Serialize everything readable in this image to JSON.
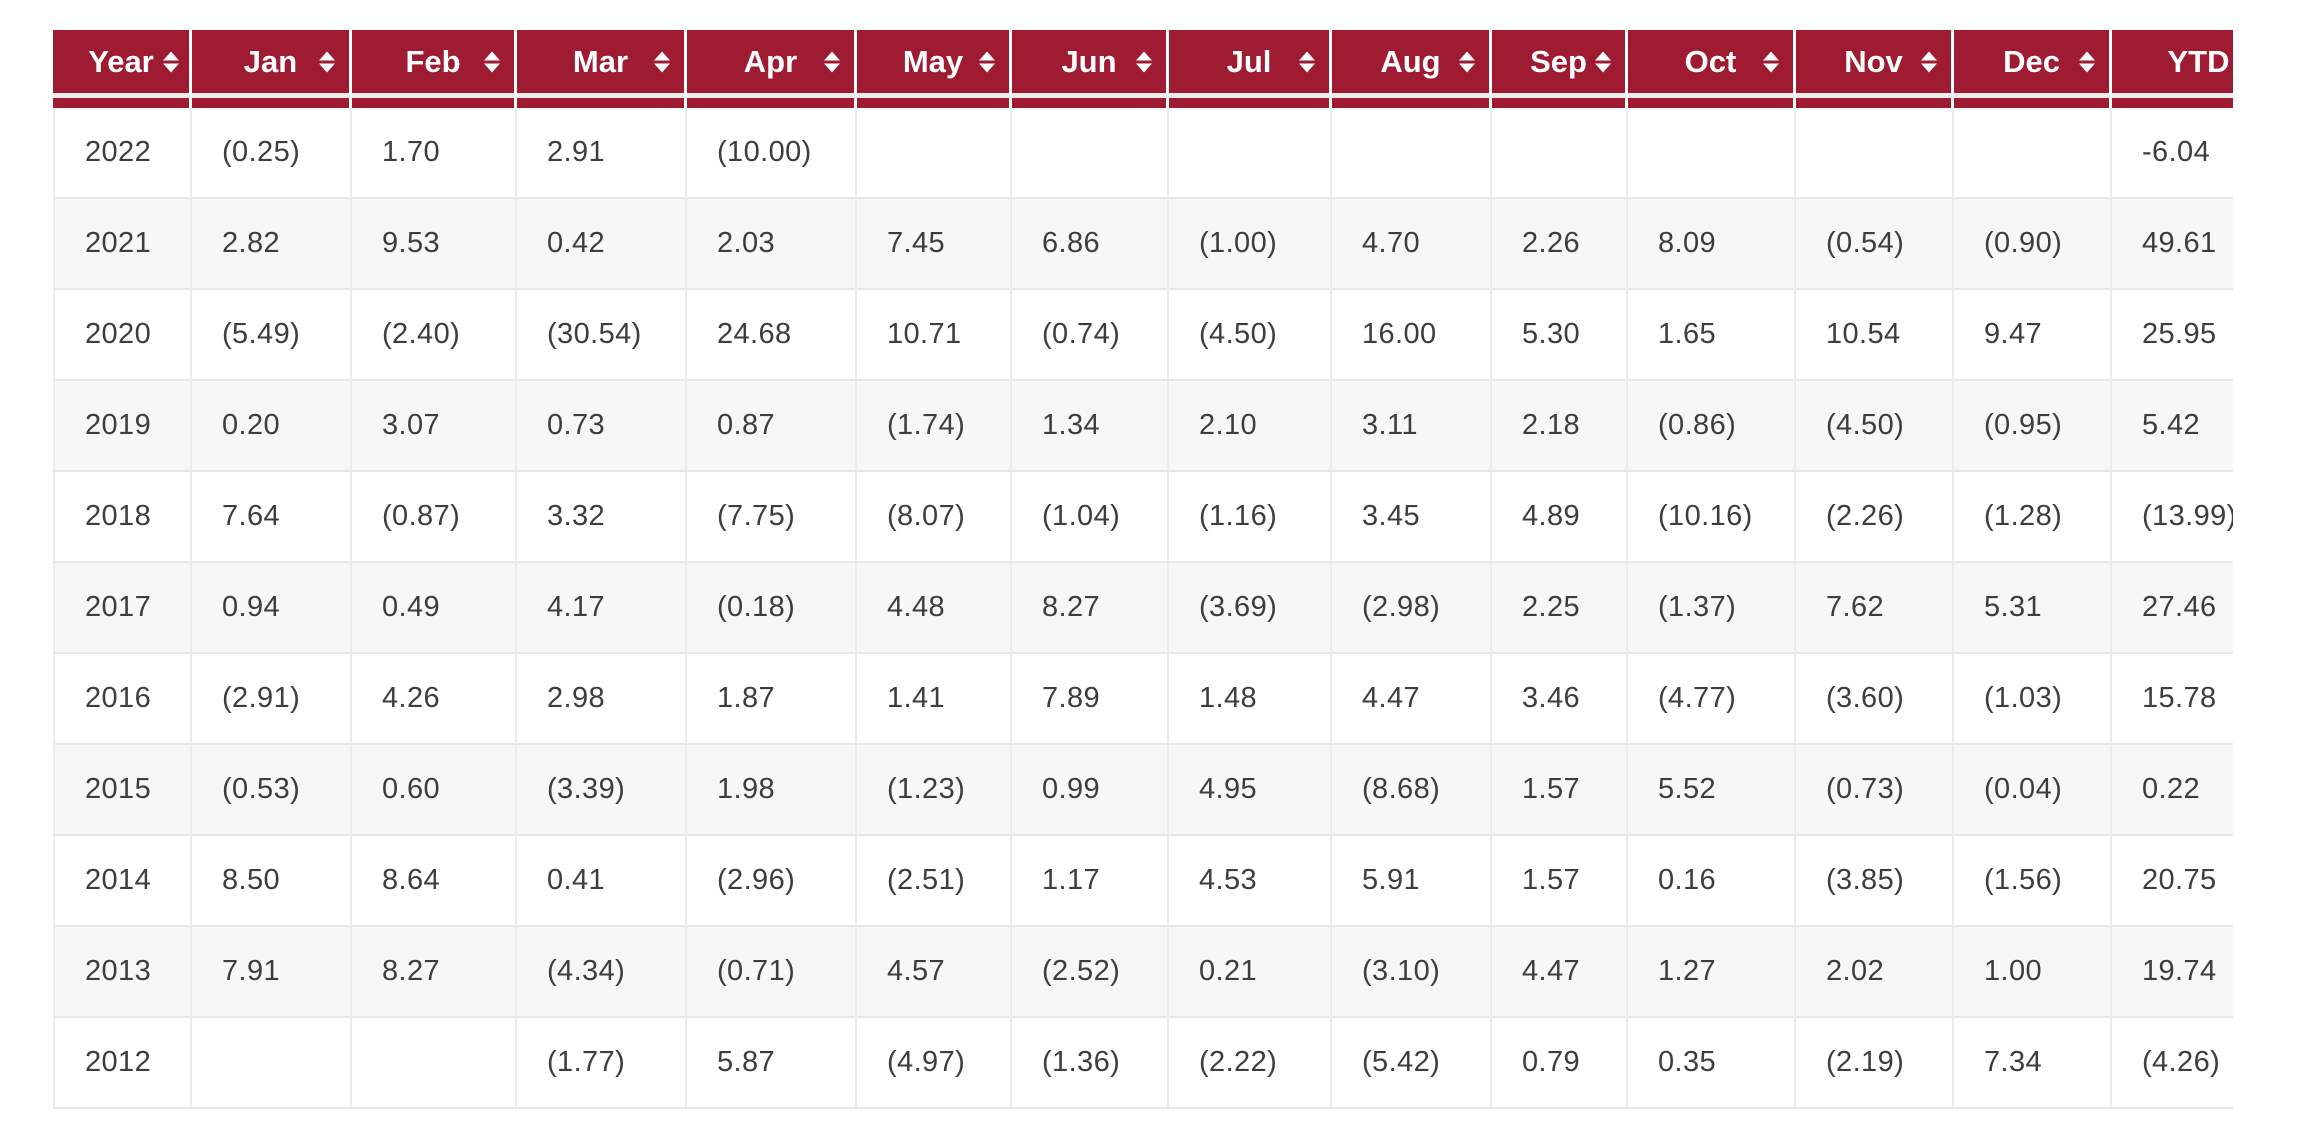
{
  "table": {
    "name": "monthly-returns-by-year",
    "columns": [
      {
        "label": "Year",
        "sortable": true
      },
      {
        "label": "Jan",
        "sortable": true
      },
      {
        "label": "Feb",
        "sortable": true
      },
      {
        "label": "Mar",
        "sortable": true
      },
      {
        "label": "Apr",
        "sortable": true
      },
      {
        "label": "May",
        "sortable": true
      },
      {
        "label": "Jun",
        "sortable": true
      },
      {
        "label": "Jul",
        "sortable": true
      },
      {
        "label": "Aug",
        "sortable": true
      },
      {
        "label": "Sep",
        "sortable": true
      },
      {
        "label": "Oct",
        "sortable": true
      },
      {
        "label": "Nov",
        "sortable": true
      },
      {
        "label": "Dec",
        "sortable": true
      },
      {
        "label": "YTD",
        "sortable": true
      }
    ],
    "rows": [
      {
        "year": "2022",
        "values": [
          "(0.25)",
          "1.70",
          "2.91",
          "(10.00)",
          "",
          "",
          "",
          "",
          "",
          "",
          "",
          "",
          "-6.04"
        ]
      },
      {
        "year": "2021",
        "values": [
          "2.82",
          "9.53",
          "0.42",
          "2.03",
          "7.45",
          "6.86",
          "(1.00)",
          "4.70",
          "2.26",
          "8.09",
          "(0.54)",
          "(0.90)",
          "49.61"
        ]
      },
      {
        "year": "2020",
        "values": [
          "(5.49)",
          "(2.40)",
          "(30.54)",
          "24.68",
          "10.71",
          "(0.74)",
          "(4.50)",
          "16.00",
          "5.30",
          "1.65",
          "10.54",
          "9.47",
          "25.95"
        ]
      },
      {
        "year": "2019",
        "values": [
          "0.20",
          "3.07",
          "0.73",
          "0.87",
          "(1.74)",
          "1.34",
          "2.10",
          "3.11",
          "2.18",
          "(0.86)",
          "(4.50)",
          "(0.95)",
          "5.42"
        ]
      },
      {
        "year": "2018",
        "values": [
          "7.64",
          "(0.87)",
          "3.32",
          "(7.75)",
          "(8.07)",
          "(1.04)",
          "(1.16)",
          "3.45",
          "4.89",
          "(10.16)",
          "(2.26)",
          "(1.28)",
          "(13.99)"
        ]
      },
      {
        "year": "2017",
        "values": [
          "0.94",
          "0.49",
          "4.17",
          "(0.18)",
          "4.48",
          "8.27",
          "(3.69)",
          "(2.98)",
          "2.25",
          "(1.37)",
          "7.62",
          "5.31",
          "27.46"
        ]
      },
      {
        "year": "2016",
        "values": [
          "(2.91)",
          "4.26",
          "2.98",
          "1.87",
          "1.41",
          "7.89",
          "1.48",
          "4.47",
          "3.46",
          "(4.77)",
          "(3.60)",
          "(1.03)",
          "15.78"
        ]
      },
      {
        "year": "2015",
        "values": [
          "(0.53)",
          "0.60",
          "(3.39)",
          "1.98",
          "(1.23)",
          "0.99",
          "4.95",
          "(8.68)",
          "1.57",
          "5.52",
          "(0.73)",
          "(0.04)",
          "0.22"
        ]
      },
      {
        "year": "2014",
        "values": [
          "8.50",
          "8.64",
          "0.41",
          "(2.96)",
          "(2.51)",
          "1.17",
          "4.53",
          "5.91",
          "1.57",
          "0.16",
          "(3.85)",
          "(1.56)",
          "20.75"
        ]
      },
      {
        "year": "2013",
        "values": [
          "7.91",
          "8.27",
          "(4.34)",
          "(0.71)",
          "4.57",
          "(2.52)",
          "0.21",
          "(3.10)",
          "4.47",
          "1.27",
          "2.02",
          "1.00",
          "19.74"
        ]
      },
      {
        "year": "2012",
        "values": [
          "",
          "",
          "(1.77)",
          "5.87",
          "(4.97)",
          "(1.36)",
          "(2.22)",
          "(5.42)",
          "0.79",
          "0.35",
          "(2.19)",
          "7.34",
          "(4.26)"
        ]
      }
    ],
    "colors": {
      "header_bg": "#9e1b32",
      "header_text": "#ffffff",
      "body_text": "#3d3d3d",
      "alt_row_bg": "#f7f7f7",
      "grid_line": "#e7e7e7"
    }
  }
}
